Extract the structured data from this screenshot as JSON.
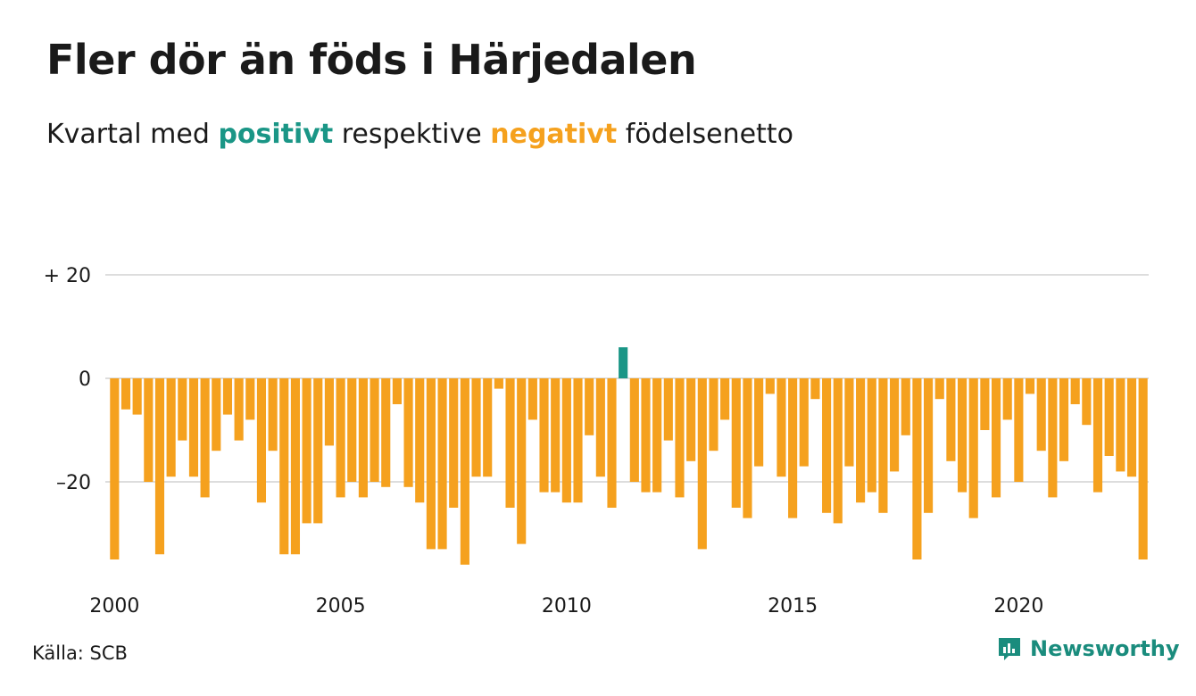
{
  "title": "Fler dör än föds i Härjedalen",
  "subtitle": {
    "prefix": "Kvartal med",
    "positive": "positivt",
    "middle": "respektive",
    "negative": "negativt",
    "suffix": "födelsenetto"
  },
  "source": "Källa: SCB",
  "brand": "Newsworthy",
  "colors": {
    "positive": "#1a9686",
    "negative": "#f5a11e",
    "grid": "#dddddd",
    "axis_text": "#1a1a1a"
  },
  "chart_data": {
    "type": "bar",
    "x_start": "2000 Q1",
    "quarters_per_year": 4,
    "x_ticks": [
      "2000",
      "2005",
      "2010",
      "2015",
      "2020"
    ],
    "y_ticks": [
      {
        "value": 20,
        "label": "+ 20"
      },
      {
        "value": 0,
        "label": "0"
      },
      {
        "value": -20,
        "label": "–20"
      }
    ],
    "ylim": [
      -37,
      21
    ],
    "grid": true,
    "series": [
      {
        "values": [
          -35,
          -6,
          -7,
          -20,
          -34,
          -19,
          -12,
          -19,
          -23,
          -14,
          -7,
          -12,
          -8,
          -24,
          -14,
          -34,
          -34,
          -28,
          -28,
          -13,
          -23,
          -20,
          -23,
          -20,
          -21,
          -5,
          -21,
          -24,
          -33,
          -33,
          -25,
          -36,
          -19,
          -19,
          -2,
          -25,
          -32,
          -8,
          -22,
          -22,
          -24,
          -24,
          -11,
          -19,
          -25,
          6,
          -20,
          -22,
          -22,
          -12,
          -23,
          -16,
          -33,
          -14,
          -8,
          -25,
          -27,
          -17,
          -3,
          -19,
          -27,
          -17,
          -4,
          -26,
          -28,
          -17,
          -24,
          -22,
          -26,
          -18,
          -11,
          -35,
          -26,
          -4,
          -16,
          -22,
          -27,
          -10,
          -23,
          -8,
          -20,
          -3,
          -14,
          -23,
          -16,
          -5,
          -9,
          -22,
          -15,
          -18,
          -19,
          -35
        ]
      }
    ]
  }
}
